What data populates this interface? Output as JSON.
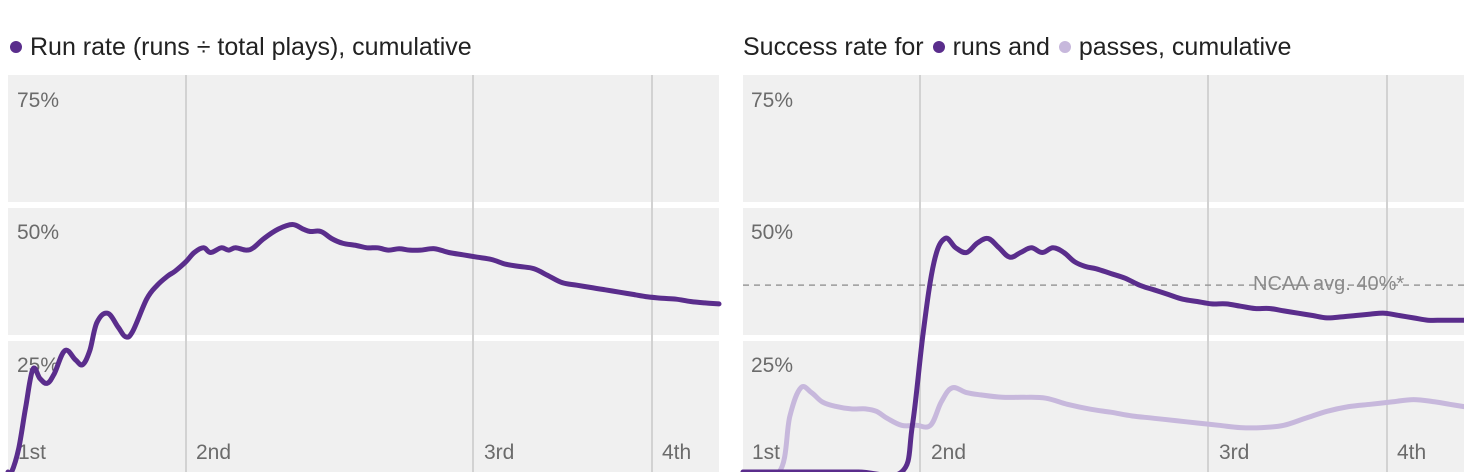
{
  "colors": {
    "run": "#5a2d8c",
    "pass": "#c7b8dc",
    "panel_bg": "#f0f0f0",
    "avg_line": "#9a9a9a"
  },
  "chart_data": [
    {
      "type": "line",
      "title": "Run rate (runs ÷ total plays), cumulative",
      "legend": [
        {
          "label": "",
          "color": "#5a2d8c"
        }
      ],
      "xlabel": "",
      "ylabel": "",
      "x_ticks": [
        "1st",
        "2nd",
        "3rd",
        "4th"
      ],
      "y_ticks": [
        "25%",
        "50%",
        "75%"
      ],
      "ylim": [
        0,
        85
      ],
      "grid": true,
      "series": [
        {
          "color": "#5a2d8c",
          "points": [
            [
              0,
              0
            ],
            [
              0.005,
              0
            ],
            [
              0.015,
              5
            ],
            [
              0.025,
              14
            ],
            [
              0.035,
              22
            ],
            [
              0.045,
              20
            ],
            [
              0.055,
              19
            ],
            [
              0.065,
              21
            ],
            [
              0.08,
              26
            ],
            [
              0.095,
              24
            ],
            [
              0.105,
              23
            ],
            [
              0.115,
              26
            ],
            [
              0.125,
              32
            ],
            [
              0.14,
              34
            ],
            [
              0.155,
              31
            ],
            [
              0.165,
              29
            ],
            [
              0.175,
              30
            ],
            [
              0.195,
              37
            ],
            [
              0.21,
              40
            ],
            [
              0.225,
              42
            ],
            [
              0.235,
              43
            ],
            [
              0.25,
              45
            ],
            [
              0.262,
              47
            ],
            [
              0.275,
              48
            ],
            [
              0.285,
              47
            ],
            [
              0.3,
              48
            ],
            [
              0.31,
              47.5
            ],
            [
              0.32,
              48
            ],
            [
              0.335,
              47.5
            ],
            [
              0.345,
              48
            ],
            [
              0.36,
              50
            ],
            [
              0.38,
              52
            ],
            [
              0.4,
              53
            ],
            [
              0.415,
              52
            ],
            [
              0.425,
              51.5
            ],
            [
              0.44,
              51.5
            ],
            [
              0.455,
              50
            ],
            [
              0.47,
              49
            ],
            [
              0.49,
              48.5
            ],
            [
              0.505,
              48
            ],
            [
              0.52,
              48
            ],
            [
              0.535,
              47.5
            ],
            [
              0.55,
              47.8
            ],
            [
              0.565,
              47.5
            ],
            [
              0.58,
              47.5
            ],
            [
              0.6,
              47.8
            ],
            [
              0.62,
              47
            ],
            [
              0.64,
              46.5
            ],
            [
              0.66,
              46
            ],
            [
              0.68,
              45.5
            ],
            [
              0.7,
              44.5
            ],
            [
              0.72,
              44
            ],
            [
              0.74,
              43.5
            ],
            [
              0.76,
              42
            ],
            [
              0.78,
              40.5
            ],
            [
              0.8,
              40
            ],
            [
              0.82,
              39.5
            ],
            [
              0.84,
              39
            ],
            [
              0.86,
              38.5
            ],
            [
              0.88,
              38
            ],
            [
              0.9,
              37.5
            ],
            [
              0.92,
              37.2
            ],
            [
              0.94,
              37
            ],
            [
              0.96,
              36.5
            ],
            [
              0.98,
              36.2
            ],
            [
              1,
              36
            ]
          ]
        }
      ]
    },
    {
      "type": "line",
      "title_parts": {
        "prefix": "Success rate for ",
        "run_label": "runs and ",
        "pass_label": "passes, cumulative"
      },
      "legend": [
        {
          "label": "runs",
          "color": "#5a2d8c"
        },
        {
          "label": "passes",
          "color": "#c7b8dc"
        }
      ],
      "xlabel": "",
      "ylabel": "",
      "x_ticks": [
        "1st",
        "2nd",
        "3rd",
        "4th"
      ],
      "y_ticks": [
        "25%",
        "50%",
        "75%"
      ],
      "ylim": [
        0,
        85
      ],
      "grid": true,
      "reference_line": {
        "value": 40,
        "label": "NCAA avg. 40%*"
      },
      "series": [
        {
          "name": "runs",
          "color": "#5a2d8c",
          "points": [
            [
              0,
              0
            ],
            [
              0.08,
              0
            ],
            [
              0.16,
              0
            ],
            [
              0.22,
              0
            ],
            [
              0.235,
              10
            ],
            [
              0.25,
              30
            ],
            [
              0.265,
              45
            ],
            [
              0.28,
              50
            ],
            [
              0.295,
              48
            ],
            [
              0.31,
              47
            ],
            [
              0.325,
              49
            ],
            [
              0.34,
              50
            ],
            [
              0.355,
              48
            ],
            [
              0.37,
              46
            ],
            [
              0.385,
              47
            ],
            [
              0.4,
              48
            ],
            [
              0.415,
              47
            ],
            [
              0.43,
              48
            ],
            [
              0.445,
              47
            ],
            [
              0.46,
              45
            ],
            [
              0.475,
              44
            ],
            [
              0.49,
              43.5
            ],
            [
              0.51,
              42.5
            ],
            [
              0.53,
              41.5
            ],
            [
              0.55,
              40
            ],
            [
              0.57,
              39
            ],
            [
              0.59,
              38
            ],
            [
              0.61,
              37
            ],
            [
              0.63,
              36.5
            ],
            [
              0.65,
              36
            ],
            [
              0.67,
              36
            ],
            [
              0.69,
              35.5
            ],
            [
              0.71,
              35
            ],
            [
              0.73,
              35
            ],
            [
              0.75,
              34.5
            ],
            [
              0.77,
              34
            ],
            [
              0.79,
              33.5
            ],
            [
              0.81,
              33
            ],
            [
              0.83,
              33.2
            ],
            [
              0.85,
              33.5
            ],
            [
              0.87,
              33.8
            ],
            [
              0.89,
              34
            ],
            [
              0.91,
              33.5
            ],
            [
              0.93,
              33
            ],
            [
              0.95,
              32.5
            ],
            [
              0.97,
              32.5
            ],
            [
              0.99,
              32.5
            ],
            [
              1,
              32.5
            ]
          ]
        },
        {
          "name": "passes",
          "color": "#c7b8dc",
          "points": [
            [
              0,
              0
            ],
            [
              0.05,
              0
            ],
            [
              0.065,
              12
            ],
            [
              0.08,
              18
            ],
            [
              0.095,
              17
            ],
            [
              0.11,
              15
            ],
            [
              0.13,
              14
            ],
            [
              0.15,
              13.5
            ],
            [
              0.17,
              13.5
            ],
            [
              0.185,
              13
            ],
            [
              0.2,
              11.5
            ],
            [
              0.22,
              10
            ],
            [
              0.24,
              10
            ],
            [
              0.26,
              10
            ],
            [
              0.275,
              15
            ],
            [
              0.29,
              18
            ],
            [
              0.31,
              17
            ],
            [
              0.33,
              16.5
            ],
            [
              0.36,
              16
            ],
            [
              0.39,
              16
            ],
            [
              0.42,
              15.8
            ],
            [
              0.45,
              14.5
            ],
            [
              0.48,
              13.5
            ],
            [
              0.51,
              12.8
            ],
            [
              0.54,
              12
            ],
            [
              0.57,
              11.5
            ],
            [
              0.6,
              11
            ],
            [
              0.63,
              10.5
            ],
            [
              0.66,
              10
            ],
            [
              0.69,
              9.5
            ],
            [
              0.72,
              9.5
            ],
            [
              0.75,
              10
            ],
            [
              0.78,
              11.5
            ],
            [
              0.81,
              13
            ],
            [
              0.84,
              14
            ],
            [
              0.87,
              14.5
            ],
            [
              0.9,
              15
            ],
            [
              0.93,
              15.5
            ],
            [
              0.96,
              15
            ],
            [
              0.98,
              14.5
            ],
            [
              1,
              14
            ]
          ]
        }
      ]
    }
  ]
}
